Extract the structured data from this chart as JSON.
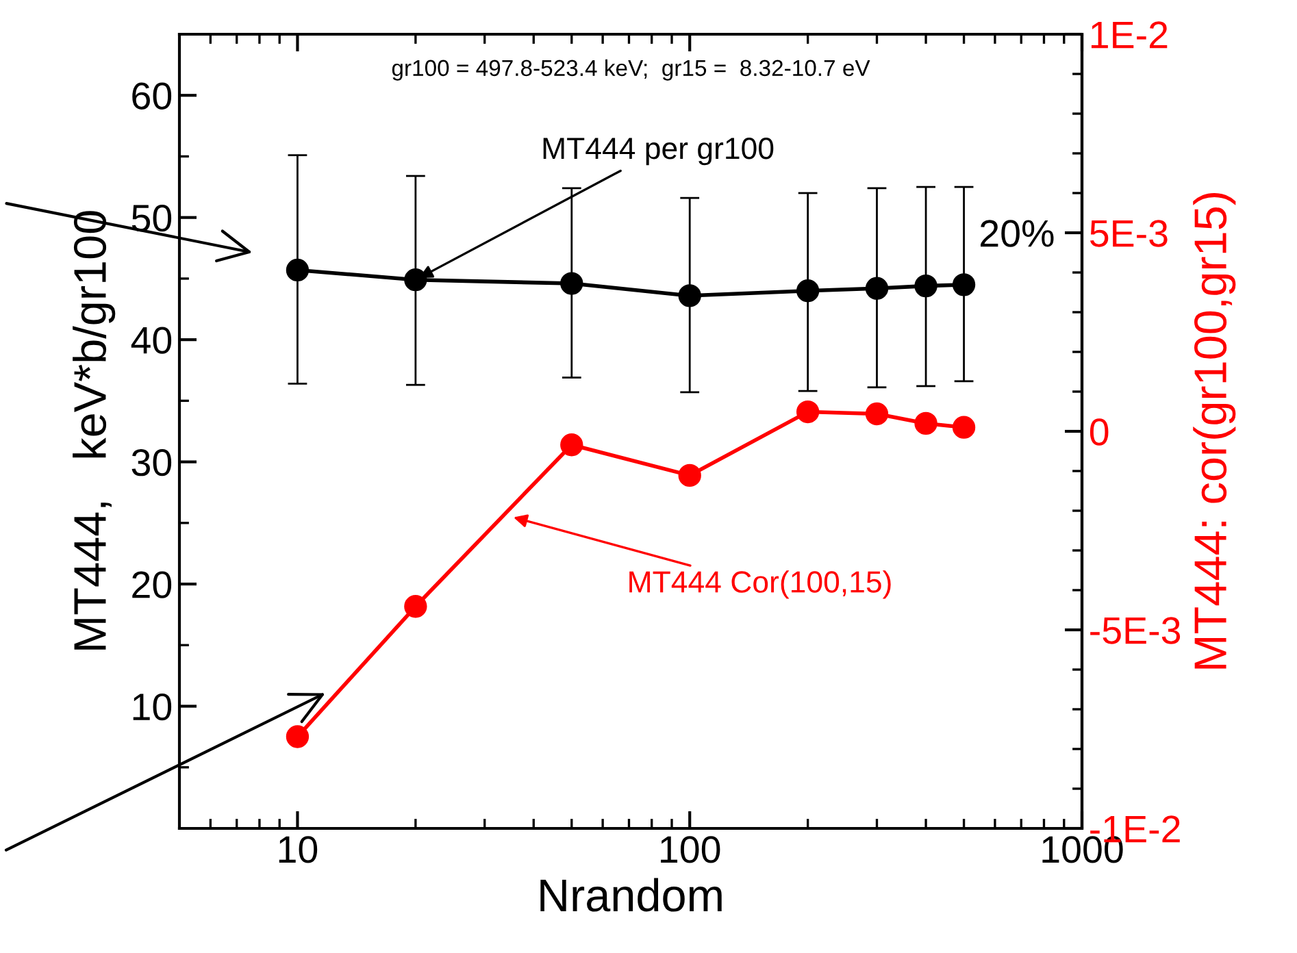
{
  "chart_data": {
    "type": "line",
    "xlabel": "Nrandom",
    "ylabel": "MT444,   keV*b/gr100",
    "y2label": "MT444: cor(gr100,gr15)",
    "log": "x",
    "marker": "circle",
    "line_style": "solid",
    "grid": false,
    "legend": false,
    "x": [
      10,
      20,
      50,
      100,
      200,
      300,
      400,
      500
    ],
    "xlim": [
      5,
      1000
    ],
    "xticks": [
      10,
      100,
      1000
    ],
    "ylim": [
      0,
      65
    ],
    "yticks": [
      {
        "value": 5,
        "label": null
      },
      10,
      {
        "value": 15,
        "label": null
      },
      20,
      {
        "value": 25,
        "label": null
      },
      30,
      {
        "value": 35,
        "label": null
      },
      40,
      {
        "value": 45,
        "label": null
      },
      50,
      {
        "value": 55,
        "label": null
      },
      60
    ],
    "y2lim": [
      -0.01,
      0.01
    ],
    "y2ticks": [
      {
        "value": -0.01,
        "label": "-1E-2"
      },
      {
        "value": -0.009,
        "label": null
      },
      {
        "value": -0.008,
        "label": null
      },
      {
        "value": -0.007,
        "label": null
      },
      {
        "value": -0.006,
        "label": null
      },
      {
        "value": -0.005,
        "label": "-5E-3"
      },
      {
        "value": -0.004,
        "label": null
      },
      {
        "value": -0.003,
        "label": null
      },
      {
        "value": -0.002,
        "label": null
      },
      {
        "value": -0.001,
        "label": null
      },
      0,
      {
        "value": 0.001,
        "label": null
      },
      {
        "value": 0.002,
        "label": null
      },
      {
        "value": 0.003,
        "label": null
      },
      {
        "value": 0.004,
        "label": null
      },
      {
        "value": 0.005,
        "label": "5E-3"
      },
      {
        "value": 0.006,
        "label": null
      },
      {
        "value": 0.007,
        "label": null
      },
      {
        "value": 0.008,
        "label": null
      },
      {
        "value": 0.009,
        "label": null
      },
      {
        "value": 0.01,
        "label": "1E-2"
      }
    ],
    "series": [
      {
        "color": "#000000",
        "values": [
          45.7,
          44.9,
          44.6,
          43.6,
          44.0,
          44.2,
          44.4,
          44.5
        ],
        "errors": [
          [
            36.4,
            55.1
          ],
          [
            36.3,
            53.4
          ],
          [
            36.9,
            52.4
          ],
          [
            35.7,
            51.6
          ],
          [
            35.8,
            52.0
          ],
          [
            36.1,
            52.4
          ],
          [
            36.2,
            52.5
          ],
          [
            36.6,
            52.5
          ]
        ]
      },
      {
        "color": "#ff0000",
        "axis": "y2",
        "values": [
          -0.00769,
          -0.00441,
          -0.00034,
          -0.00111,
          0.00049,
          0.00044,
          0.0002,
          0.0001
        ]
      }
    ],
    "annotations": [
      "gr100 = 497.8-523.4 keV;  gr15 =  8.32-10.7 eV",
      {
        "text": "MT444 per gr100",
        "x": 20,
        "y": 44.9
      },
      "MT444 Cor(100,15)",
      "20%"
    ]
  }
}
